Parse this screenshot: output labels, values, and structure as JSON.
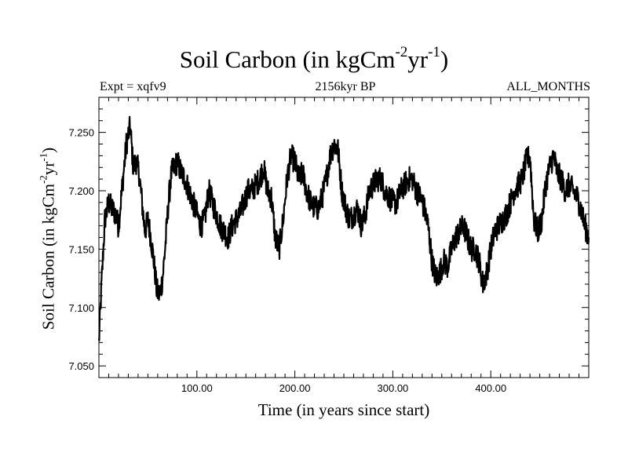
{
  "chart_data": {
    "type": "line",
    "title": {
      "text": "Soil Carbon (in kgCm",
      "exp1": "-2",
      "mid": "yr",
      "exp2": "-1",
      "end": ")"
    },
    "header_left": "Expt = xqfv9",
    "header_center": "2156kyr BP",
    "header_right": "ALL_MONTHS",
    "xlabel": "Time (in years since start)",
    "ylabel": {
      "text": "Soil Carbon (in kgCm",
      "exp1": "-2",
      "mid": "yr",
      "exp2": "-1",
      "end": ")"
    },
    "xlim": [
      0,
      500
    ],
    "ylim": [
      7.04,
      7.28
    ],
    "x_ticks": [
      {
        "value": 100,
        "label": "100.00"
      },
      {
        "value": 200,
        "label": "200.00"
      },
      {
        "value": 300,
        "label": "300.00"
      },
      {
        "value": 400,
        "label": "400.00"
      }
    ],
    "y_ticks": [
      {
        "value": 7.05,
        "label": "7.050"
      },
      {
        "value": 7.1,
        "label": "7.100"
      },
      {
        "value": 7.15,
        "label": "7.150"
      },
      {
        "value": 7.2,
        "label": "7.200"
      },
      {
        "value": 7.25,
        "label": "7.250"
      }
    ],
    "series": [
      {
        "color": "#000000",
        "x": [
          0,
          3,
          6,
          10,
          13,
          17,
          20,
          24,
          28,
          32,
          35,
          38,
          41,
          44,
          47,
          50,
          53,
          56,
          59,
          62,
          65,
          68,
          71,
          74,
          77,
          80,
          84,
          88,
          92,
          96,
          100,
          104,
          108,
          112,
          116,
          120,
          124,
          128,
          132,
          136,
          140,
          144,
          148,
          152,
          156,
          160,
          164,
          168,
          172,
          176,
          180,
          184,
          188,
          192,
          196,
          200,
          204,
          208,
          212,
          216,
          220,
          224,
          228,
          232,
          236,
          240,
          244,
          248,
          252,
          256,
          260,
          264,
          268,
          272,
          276,
          280,
          284,
          288,
          292,
          296,
          300,
          304,
          308,
          312,
          316,
          320,
          324,
          328,
          332,
          336,
          340,
          344,
          348,
          352,
          356,
          360,
          364,
          368,
          372,
          376,
          380,
          384,
          388,
          392,
          396,
          400,
          404,
          408,
          412,
          416,
          420,
          424,
          428,
          432,
          436,
          440,
          444,
          448,
          452,
          456,
          460,
          464,
          468,
          472,
          476,
          480,
          484,
          488,
          492,
          496,
          500
        ],
        "y": [
          7.07,
          7.125,
          7.175,
          7.19,
          7.185,
          7.18,
          7.17,
          7.205,
          7.24,
          7.255,
          7.22,
          7.225,
          7.215,
          7.19,
          7.165,
          7.175,
          7.16,
          7.14,
          7.115,
          7.11,
          7.125,
          7.155,
          7.19,
          7.215,
          7.22,
          7.225,
          7.215,
          7.21,
          7.2,
          7.19,
          7.18,
          7.17,
          7.175,
          7.2,
          7.19,
          7.18,
          7.17,
          7.165,
          7.16,
          7.17,
          7.175,
          7.18,
          7.19,
          7.2,
          7.2,
          7.205,
          7.21,
          7.22,
          7.2,
          7.195,
          7.16,
          7.15,
          7.175,
          7.21,
          7.23,
          7.225,
          7.21,
          7.215,
          7.2,
          7.19,
          7.185,
          7.185,
          7.195,
          7.21,
          7.23,
          7.24,
          7.235,
          7.2,
          7.185,
          7.175,
          7.18,
          7.185,
          7.17,
          7.18,
          7.2,
          7.205,
          7.21,
          7.21,
          7.2,
          7.195,
          7.19,
          7.19,
          7.2,
          7.205,
          7.21,
          7.21,
          7.2,
          7.195,
          7.185,
          7.17,
          7.14,
          7.125,
          7.13,
          7.14,
          7.135,
          7.15,
          7.16,
          7.165,
          7.17,
          7.16,
          7.15,
          7.15,
          7.14,
          7.12,
          7.13,
          7.15,
          7.165,
          7.17,
          7.175,
          7.18,
          7.19,
          7.2,
          7.205,
          7.21,
          7.225,
          7.23,
          7.175,
          7.165,
          7.175,
          7.205,
          7.22,
          7.23,
          7.215,
          7.21,
          7.2,
          7.205,
          7.2,
          7.195,
          7.185,
          7.17,
          7.16
        ]
      }
    ],
    "grid": false,
    "legend": "none"
  }
}
